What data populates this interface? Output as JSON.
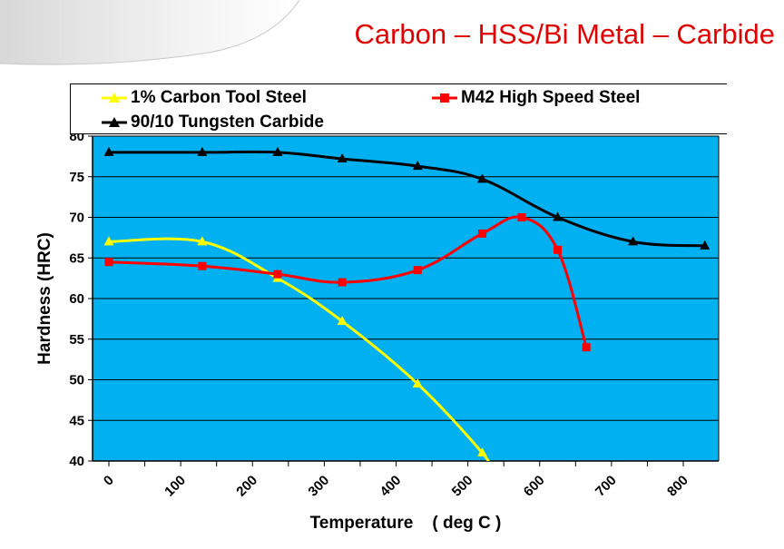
{
  "slide": {
    "title": "Carbon – HSS/Bi Metal – Carbide"
  },
  "colors": {
    "plot_background": "#00b0f0",
    "title": "#e00000"
  },
  "chart_data": {
    "type": "line",
    "xlabel": "Temperature    ( deg C )",
    "ylabel": "Hardness (HRC)",
    "xlim": [
      0,
      800
    ],
    "ylim": [
      40,
      80
    ],
    "y_ticks": [
      "40",
      "45",
      "50",
      "55",
      "60",
      "65",
      "70",
      "75",
      "80"
    ],
    "x_ticks": [
      "0",
      "100",
      "200",
      "300",
      "400",
      "500",
      "600",
      "700",
      "800"
    ],
    "grid": "horizontal",
    "legend_position": "top",
    "series": [
      {
        "name": "1% Carbon Tool Steel",
        "color": "#ffff00",
        "marker": "triangle",
        "points": [
          [
            0,
            67
          ],
          [
            130,
            67
          ],
          [
            235,
            62.5
          ],
          [
            325,
            57.2
          ],
          [
            430,
            49.5
          ],
          [
            520,
            41
          ],
          [
            530,
            39
          ]
        ]
      },
      {
        "name": "M42 High Speed Steel",
        "color": "#ff0000",
        "marker": "square",
        "points": [
          [
            0,
            64.5
          ],
          [
            130,
            64
          ],
          [
            235,
            63
          ],
          [
            325,
            62
          ],
          [
            430,
            63.5
          ],
          [
            520,
            68
          ],
          [
            575,
            70
          ],
          [
            625,
            66
          ],
          [
            665,
            54
          ]
        ]
      },
      {
        "name": "90/10 Tungsten Carbide",
        "color": "#000000",
        "marker": "triangle",
        "points": [
          [
            0,
            78
          ],
          [
            130,
            78
          ],
          [
            235,
            78
          ],
          [
            325,
            77.2
          ],
          [
            430,
            76.3
          ],
          [
            520,
            74.7
          ],
          [
            625,
            70
          ],
          [
            730,
            67
          ],
          [
            830,
            66.5
          ]
        ]
      }
    ]
  }
}
